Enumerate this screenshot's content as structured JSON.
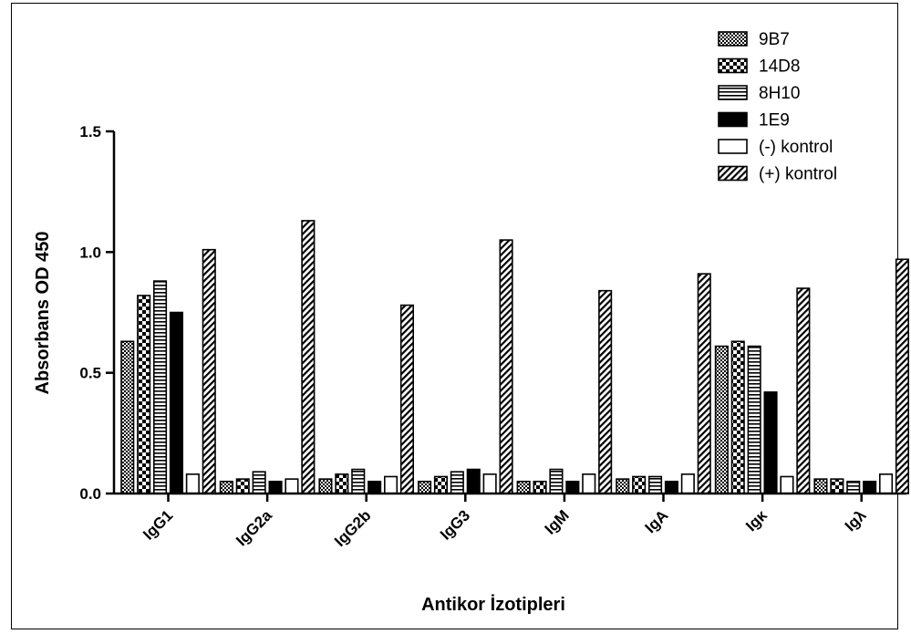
{
  "chart_data": {
    "type": "bar",
    "title": "",
    "xlabel": "Antikor İzotipleri",
    "ylabel": "Absorbans OD 450",
    "ylim": [
      0,
      1.5
    ],
    "yticks": [
      "0.0",
      "0.5",
      "1.0",
      "1.5"
    ],
    "categories": [
      "IgG1",
      "IgG2a",
      "IgG2b",
      "IgG3",
      "IgM",
      "IgA",
      "Igκ",
      "Igλ"
    ],
    "legend_position": "top-right",
    "grid": false,
    "series": [
      {
        "name": "9B7",
        "pattern": "checker",
        "values": [
          0.63,
          0.05,
          0.06,
          0.05,
          0.05,
          0.06,
          0.61,
          0.06
        ]
      },
      {
        "name": "14D8",
        "pattern": "bigchecker",
        "values": [
          0.82,
          0.06,
          0.08,
          0.07,
          0.05,
          0.07,
          0.63,
          0.06
        ]
      },
      {
        "name": "8H10",
        "pattern": "hlines",
        "values": [
          0.88,
          0.09,
          0.1,
          0.09,
          0.1,
          0.07,
          0.61,
          0.05
        ]
      },
      {
        "name": "1E9",
        "pattern": "solid",
        "values": [
          0.75,
          0.05,
          0.05,
          0.1,
          0.05,
          0.05,
          0.42,
          0.05
        ]
      },
      {
        "name": "(-) kontrol",
        "pattern": "empty",
        "values": [
          0.08,
          0.06,
          0.07,
          0.08,
          0.08,
          0.08,
          0.07,
          0.08
        ]
      },
      {
        "name": "(+) kontrol",
        "pattern": "diagonal",
        "values": [
          1.01,
          1.13,
          0.78,
          1.05,
          0.84,
          0.91,
          0.85,
          0.97
        ]
      }
    ]
  }
}
